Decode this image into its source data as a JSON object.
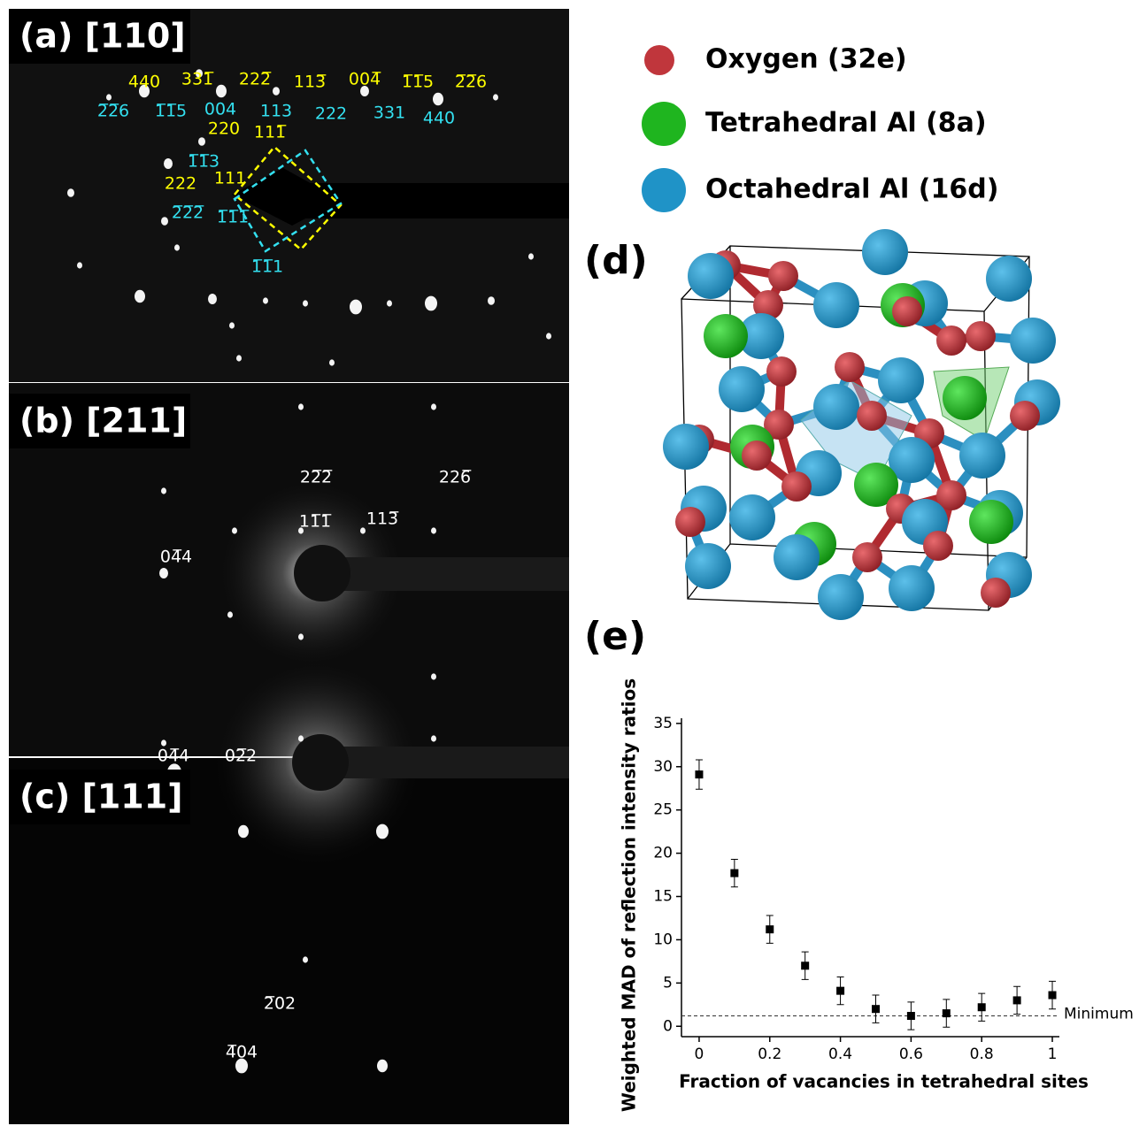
{
  "panels": {
    "a": {
      "label": "(a) [110]",
      "indices": [
        {
          "text": "440",
          "color": "#ffff00"
        },
        {
          "text": "331̅",
          "color": "#ffff00"
        },
        {
          "text": "222̅",
          "color": "#ffff00"
        },
        {
          "text": "113̅",
          "color": "#ffff00"
        },
        {
          "text": "004̅",
          "color": "#ffff00"
        },
        {
          "text": "1̅1̅5",
          "color": "#ffff00"
        },
        {
          "text": "2̅2̅6",
          "color": "#ffff00"
        },
        {
          "text": "2̅2̅6",
          "color": "#33e0f0"
        },
        {
          "text": "1̅1̅5",
          "color": "#33e0f0"
        },
        {
          "text": "004",
          "color": "#33e0f0"
        },
        {
          "text": "113",
          "color": "#33e0f0"
        },
        {
          "text": "222",
          "color": "#33e0f0"
        },
        {
          "text": "331",
          "color": "#33e0f0"
        },
        {
          "text": "440",
          "color": "#33e0f0"
        },
        {
          "text": "220",
          "color": "#ffff00"
        },
        {
          "text": "111̅",
          "color": "#ffff00"
        },
        {
          "text": "1̅1̅3",
          "color": "#33e0f0"
        },
        {
          "text": "111",
          "color": "#ffff00"
        },
        {
          "text": "222",
          "color": "#ffff00"
        },
        {
          "text": "2̅2̅2̅",
          "color": "#33e0f0"
        },
        {
          "text": "1̅1̅1̅",
          "color": "#33e0f0"
        },
        {
          "text": "1̅1̅1",
          "color": "#33e0f0"
        }
      ]
    },
    "b": {
      "label": "(b) [211]",
      "indices": [
        {
          "text": "22̅2̅",
          "color": "#ffffff"
        },
        {
          "text": "226̅",
          "color": "#ffffff"
        },
        {
          "text": "11̅1̅",
          "color": "#ffffff"
        },
        {
          "text": "113̅",
          "color": "#ffffff"
        },
        {
          "text": "04̅4",
          "color": "#ffffff"
        }
      ]
    },
    "c": {
      "label": "(c) [111]",
      "indices": [
        {
          "text": "04̅4",
          "color": "#ffffff"
        },
        {
          "text": "02̅2",
          "color": "#ffffff"
        },
        {
          "text": "2̅02",
          "color": "#ffffff"
        },
        {
          "text": "4̅04",
          "color": "#ffffff"
        }
      ]
    },
    "d": {
      "label": "(d)"
    },
    "e": {
      "label": "(e)"
    }
  },
  "legend": [
    {
      "label": "Oxygen (32e)",
      "color": "#c0363c"
    },
    {
      "label": "Tetrahedral Al (8a)",
      "color": "#1fb51f"
    },
    {
      "label": "Octahedral Al (16d)",
      "color": "#1f93c7"
    }
  ],
  "chart_data": {
    "type": "scatter",
    "x": [
      0,
      0.1,
      0.2,
      0.3,
      0.4,
      0.5,
      0.6,
      0.7,
      0.8,
      0.9,
      1
    ],
    "values": [
      29.1,
      17.7,
      11.2,
      7.0,
      4.1,
      2.0,
      1.2,
      1.5,
      2.2,
      3.0,
      3.6
    ],
    "errors": [
      1.7,
      1.6,
      1.6,
      1.6,
      1.6,
      1.6,
      1.6,
      1.6,
      1.6,
      1.6,
      1.6
    ],
    "color": "#000000",
    "xlim": [
      -0.05,
      1.02
    ],
    "ylim": [
      -1.2,
      35.6
    ],
    "xticks": [
      0,
      0.2,
      0.4,
      0.6,
      0.8,
      1
    ],
    "yticks": [
      0,
      5,
      10,
      15,
      20,
      25,
      30,
      35
    ],
    "x_label": "Fraction of vacancies in tetrahedral sites",
    "y_label": "Weighted MAD of reflection intensity ratios",
    "reference_line": {
      "value": 1.2,
      "label": "Minimum"
    }
  }
}
